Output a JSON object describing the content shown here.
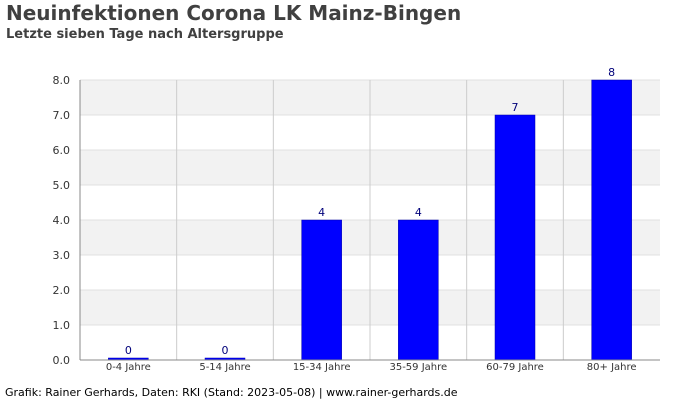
{
  "chart_data": {
    "type": "bar",
    "title": "Neuinfektionen Corona LK Mainz-Bingen",
    "subtitle": "Letzte sieben Tage nach Altersgruppe",
    "categories": [
      "0-4 Jahre",
      "5-14 Jahre",
      "15-34 Jahre",
      "35-59 Jahre",
      "60-79 Jahre",
      "80+ Jahre"
    ],
    "values": [
      0,
      0,
      4,
      4,
      7,
      8
    ],
    "data_labels": [
      "0",
      "0",
      "4",
      "4",
      "7",
      "8"
    ],
    "ylim": [
      0,
      8
    ],
    "yticks": [
      "0.0",
      "1.0",
      "2.0",
      "3.0",
      "4.0",
      "5.0",
      "6.0",
      "7.0",
      "8.0"
    ],
    "xlabel": "",
    "ylabel": "",
    "grid": true,
    "bar_color": "#0000ff",
    "band_color": "#f2f2f2"
  },
  "footer": "Grafik: Rainer Gerhards, Daten: RKI (Stand: 2023-05-08) | www.rainer-gerhards.de"
}
